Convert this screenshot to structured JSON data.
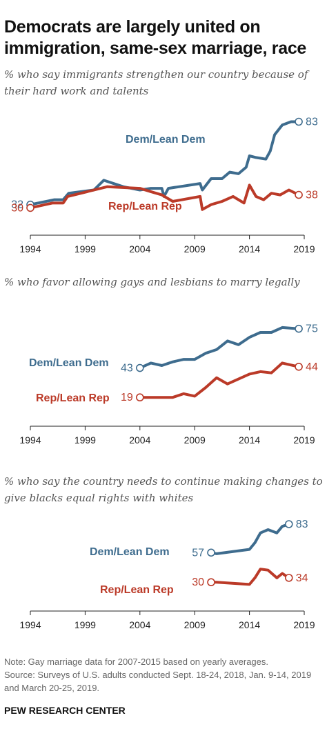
{
  "title": "Democrats are largely united on immigration, same-sex marriage, race",
  "colors": {
    "dem": "#3e6c8e",
    "rep": "#bb3a28",
    "axis": "#222222"
  },
  "note": "Note: Gay marriage data for 2007-2015 based on yearly averages.",
  "source": "Source: Surveys of U.S. adults conducted Sept. 18-24, 2018, Jan. 9-14, 2019 and March 20-25, 2019.",
  "credit": "PEW RESEARCH CENTER",
  "chart_data": [
    {
      "type": "line",
      "subtitle": "% who say immigrants strengthen our country because of their hard work and talents",
      "xlim": [
        1994,
        2019
      ],
      "xticks": [
        "1994",
        "1999",
        "2004",
        "2009",
        "2014",
        "2019"
      ],
      "ylim": [
        20,
        90
      ],
      "series": [
        {
          "name": "Dem/Lean Dem",
          "color": "#3e6c8e",
          "x": [
            1994.0,
            1996.2,
            1997.0,
            1997.5,
            1999.8,
            2000.7,
            2002.5,
            2004.0,
            2005.0,
            2006.0,
            2006.2,
            2006.6,
            2009.5,
            2009.7,
            2010.5,
            2011.5,
            2012.2,
            2013.0,
            2013.7,
            2014.0,
            2014.6,
            2015.5,
            2015.9,
            2016.3,
            2017.0,
            2017.8,
            2018.5
          ],
          "y": [
            32,
            35,
            35,
            39,
            41,
            47,
            43,
            41,
            42,
            42,
            37,
            42,
            45,
            41,
            48,
            48,
            52,
            51,
            55,
            62,
            61,
            60,
            65,
            75,
            81,
            83,
            83
          ]
        },
        {
          "name": "Rep/Lean Rep",
          "color": "#bb3a28",
          "x": [
            1994.0,
            1996.0,
            1997.0,
            1997.4,
            2001.0,
            2004.0,
            2005.0,
            2006.0,
            2007.0,
            2009.5,
            2009.7,
            2010.5,
            2011.5,
            2012.5,
            2013.5,
            2014.0,
            2014.6,
            2015.3,
            2016.0,
            2016.8,
            2017.6,
            2018.5
          ],
          "y": [
            30,
            33,
            33,
            37,
            43,
            42,
            40,
            38,
            34,
            37,
            29,
            32,
            34,
            37,
            33,
            44,
            37,
            35,
            39,
            38,
            41,
            38
          ]
        }
      ]
    },
    {
      "type": "line",
      "subtitle": "% who favor allowing gays and lesbians to marry legally",
      "xlim": [
        1994,
        2019
      ],
      "xticks": [
        "1994",
        "1999",
        "2004",
        "2009",
        "2014",
        "2019"
      ],
      "ylim": [
        0,
        90
      ],
      "series": [
        {
          "name": "Dem/Lean Dem",
          "color": "#3e6c8e",
          "x": [
            2004.0,
            2005.0,
            2006.0,
            2007.0,
            2008.0,
            2009.0,
            2010.0,
            2011.0,
            2012.0,
            2013.0,
            2014.0,
            2015.0,
            2016.0,
            2017.0,
            2018.5
          ],
          "y": [
            43,
            47,
            45,
            48,
            50,
            50,
            55,
            58,
            65,
            62,
            68,
            72,
            72,
            76,
            75
          ]
        },
        {
          "name": "Rep/Lean Rep",
          "color": "#bb3a28",
          "x": [
            2004.0,
            2005.0,
            2006.0,
            2007.0,
            2008.0,
            2009.0,
            2010.0,
            2011.0,
            2012.0,
            2013.0,
            2014.0,
            2015.0,
            2016.0,
            2017.0,
            2018.5
          ],
          "y": [
            19,
            19,
            19,
            19,
            22,
            20,
            27,
            35,
            30,
            34,
            38,
            40,
            39,
            47,
            44
          ]
        }
      ]
    },
    {
      "type": "line",
      "subtitle": "% who say the country needs to continue making changes to give blacks equal rights with whites",
      "xlim": [
        1994,
        2019
      ],
      "xticks": [
        "1994",
        "1999",
        "2004",
        "2009",
        "2014",
        "2019"
      ],
      "ylim": [
        10,
        100
      ],
      "series": [
        {
          "name": "Dem/Lean Dem",
          "color": "#3e6c8e",
          "x": [
            2010.5,
            2011.0,
            2014.0,
            2014.5,
            2015.0,
            2015.7,
            2016.5,
            2017.0,
            2017.6
          ],
          "y": [
            57,
            56,
            60,
            66,
            75,
            78,
            75,
            81,
            83
          ]
        },
        {
          "name": "Rep/Lean Rep",
          "color": "#bb3a28",
          "x": [
            2010.5,
            2011.0,
            2014.0,
            2014.5,
            2015.0,
            2015.7,
            2016.5,
            2017.0,
            2017.6
          ],
          "y": [
            30,
            30,
            28,
            34,
            42,
            41,
            34,
            38,
            34
          ]
        }
      ]
    }
  ]
}
